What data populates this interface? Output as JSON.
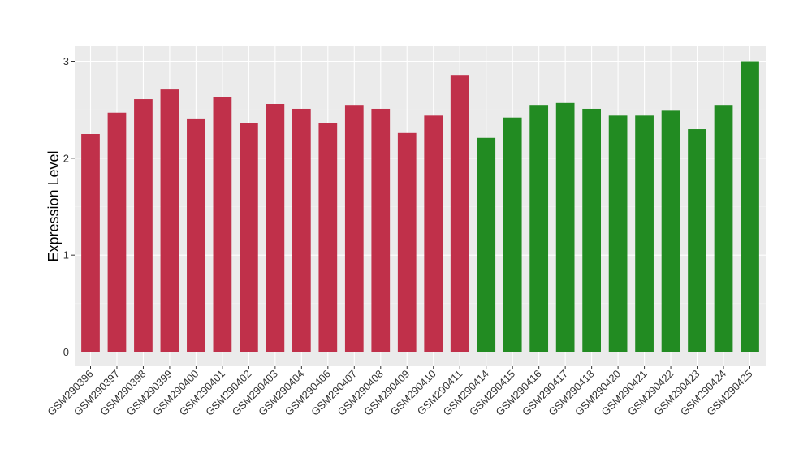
{
  "chart_data": {
    "type": "bar",
    "title": "",
    "xlabel": "",
    "ylabel": "Expression Level",
    "ylim": [
      0,
      3.14
    ],
    "yticks": [
      0,
      1,
      2,
      3
    ],
    "ytick_labels": [
      "0",
      "1",
      "2",
      "3"
    ],
    "grid": true,
    "panel_background": "#ebebeb",
    "categories": [
      "GSM290396",
      "GSM290397",
      "GSM290398",
      "GSM290399",
      "GSM290400",
      "GSM290401",
      "GSM290402",
      "GSM290403",
      "GSM290404",
      "GSM290406",
      "GSM290407",
      "GSM290408",
      "GSM290409",
      "GSM290410",
      "GSM290411",
      "GSM290414",
      "GSM290415",
      "GSM290416",
      "GSM290417",
      "GSM290418",
      "GSM290420",
      "GSM290421",
      "GSM290422",
      "GSM290423",
      "GSM290424",
      "GSM290425"
    ],
    "values": [
      2.25,
      2.47,
      2.61,
      2.71,
      2.41,
      2.63,
      2.36,
      2.56,
      2.51,
      2.36,
      2.55,
      2.51,
      2.26,
      2.44,
      2.86,
      2.21,
      2.42,
      2.55,
      2.57,
      2.51,
      2.44,
      2.44,
      2.49,
      2.3,
      2.55,
      3.0
    ],
    "bar_colors": [
      "#c0304a",
      "#c0304a",
      "#c0304a",
      "#c0304a",
      "#c0304a",
      "#c0304a",
      "#c0304a",
      "#c0304a",
      "#c0304a",
      "#c0304a",
      "#c0304a",
      "#c0304a",
      "#c0304a",
      "#c0304a",
      "#c0304a",
      "#228b22",
      "#228b22",
      "#228b22",
      "#228b22",
      "#228b22",
      "#228b22",
      "#228b22",
      "#228b22",
      "#228b22",
      "#228b22",
      "#228b22"
    ]
  }
}
